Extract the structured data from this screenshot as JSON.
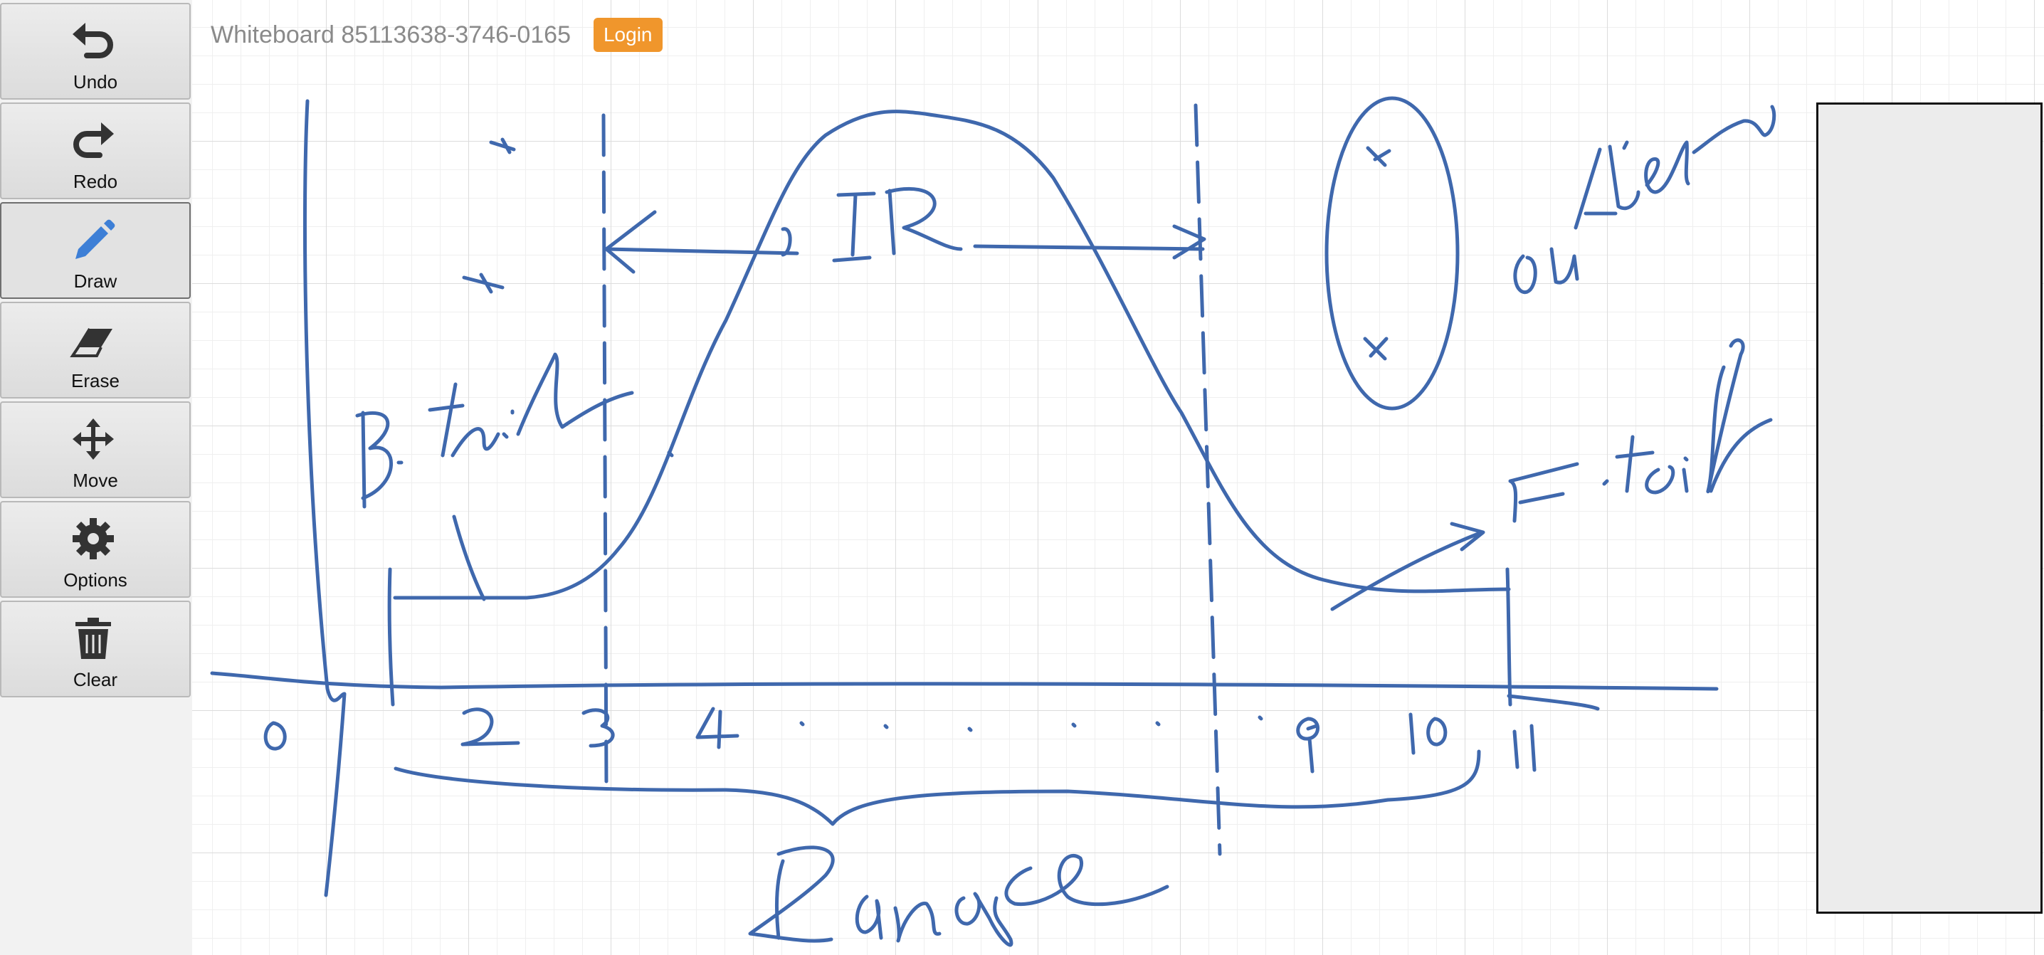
{
  "header": {
    "title": "Whiteboard 85113638-3746-0165",
    "login_label": "Login"
  },
  "toolbar": {
    "active_tool": "Draw",
    "buttons": [
      {
        "label": "Undo",
        "icon": "undo-icon"
      },
      {
        "label": "Redo",
        "icon": "redo-icon"
      },
      {
        "label": "Draw",
        "icon": "pencil-icon"
      },
      {
        "label": "Erase",
        "icon": "eraser-icon"
      },
      {
        "label": "Move",
        "icon": "move-icon"
      },
      {
        "label": "Options",
        "icon": "gear-icon"
      },
      {
        "label": "Clear",
        "icon": "trash-icon"
      }
    ]
  },
  "colors": {
    "ink": "#3f68ad",
    "login_button": "#f0962c",
    "title_text": "#8a8a8a"
  }
}
